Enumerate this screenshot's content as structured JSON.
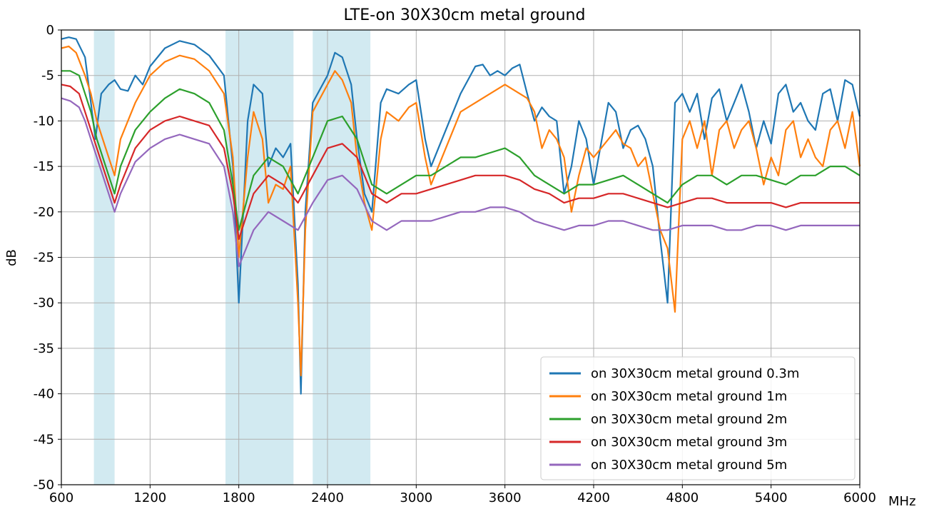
{
  "chart_data": {
    "type": "line",
    "title": "LTE-on 30X30cm metal ground",
    "ylabel": "dB",
    "xlabel": "",
    "x_unit": "MHz",
    "xlim": [
      600,
      6000
    ],
    "ylim": [
      -50,
      0
    ],
    "x_ticks": [
      600,
      1200,
      1800,
      2400,
      3000,
      3600,
      4200,
      4800,
      5400,
      6000
    ],
    "x_tick_labels": [
      "600",
      "1200",
      "1800",
      "2400",
      "3000",
      "3600",
      "4200",
      "4800",
      "5400",
      "6000"
    ],
    "y_ticks": [
      0,
      -5,
      -10,
      -15,
      -20,
      -25,
      -30,
      -35,
      -40,
      -45,
      -50
    ],
    "y_tick_labels": [
      "0",
      "-5",
      "-10",
      "-15",
      "-20",
      "-25",
      "-30",
      "-35",
      "-40",
      "-45",
      "-50"
    ],
    "grid": true,
    "legend_position": "bottom-right",
    "shaded_bands": [
      [
        820,
        960
      ],
      [
        1710,
        2170
      ],
      [
        2300,
        2690
      ]
    ],
    "band_color": "#add8e6",
    "series": [
      {
        "name": "on 30X30cm metal ground 0.3m",
        "color": "#1f77b4",
        "x": [
          600,
          650,
          700,
          760,
          800,
          830,
          870,
          920,
          960,
          1000,
          1050,
          1100,
          1150,
          1200,
          1300,
          1400,
          1500,
          1600,
          1700,
          1760,
          1800,
          1860,
          1900,
          1960,
          2000,
          2050,
          2100,
          2150,
          2200,
          2220,
          2250,
          2300,
          2400,
          2450,
          2500,
          2560,
          2600,
          2650,
          2700,
          2760,
          2800,
          2880,
          2950,
          3000,
          3060,
          3100,
          3200,
          3300,
          3400,
          3450,
          3500,
          3550,
          3600,
          3650,
          3700,
          3750,
          3800,
          3850,
          3900,
          3950,
          4000,
          4050,
          4100,
          4150,
          4200,
          4300,
          4350,
          4400,
          4450,
          4500,
          4550,
          4600,
          4650,
          4700,
          4750,
          4800,
          4850,
          4900,
          4950,
          5000,
          5050,
          5100,
          5150,
          5200,
          5250,
          5300,
          5350,
          5400,
          5450,
          5500,
          5550,
          5600,
          5650,
          5700,
          5750,
          5800,
          5850,
          5900,
          5950,
          6000
        ],
        "y": [
          -1,
          -0.8,
          -1,
          -3,
          -8,
          -12,
          -7,
          -6,
          -5.5,
          -6.5,
          -6.7,
          -5,
          -6,
          -4,
          -2,
          -1.2,
          -1.6,
          -2.8,
          -5,
          -15,
          -30,
          -10,
          -6,
          -7,
          -15,
          -13,
          -14,
          -12.5,
          -28,
          -40,
          -20,
          -8,
          -5,
          -2.5,
          -3,
          -6,
          -12,
          -18,
          -20,
          -8,
          -6.5,
          -7,
          -6,
          -5.5,
          -12,
          -15,
          -11,
          -7,
          -4,
          -3.8,
          -5,
          -4.5,
          -5,
          -4.2,
          -3.8,
          -7,
          -10,
          -8.5,
          -9.5,
          -10,
          -18,
          -15,
          -10,
          -12,
          -17,
          -8,
          -9,
          -13,
          -11,
          -10.5,
          -12,
          -15,
          -23,
          -30,
          -8,
          -7,
          -9,
          -7,
          -12,
          -7.5,
          -6.5,
          -10,
          -8,
          -6,
          -9,
          -13,
          -10,
          -12.5,
          -7,
          -6,
          -9,
          -8,
          -10,
          -11,
          -7,
          -6.5,
          -10,
          -5.5,
          -6,
          -9.5
        ]
      },
      {
        "name": "on 30X30cm metal ground 1m",
        "color": "#ff7f0e",
        "x": [
          600,
          650,
          700,
          760,
          800,
          840,
          880,
          920,
          960,
          1000,
          1100,
          1200,
          1300,
          1400,
          1500,
          1600,
          1700,
          1760,
          1800,
          1860,
          1900,
          1960,
          2000,
          2050,
          2100,
          2150,
          2200,
          2220,
          2250,
          2300,
          2400,
          2450,
          2500,
          2560,
          2600,
          2650,
          2700,
          2760,
          2800,
          2880,
          2950,
          3000,
          3060,
          3100,
          3200,
          3300,
          3400,
          3500,
          3600,
          3700,
          3750,
          3800,
          3850,
          3900,
          3950,
          4000,
          4050,
          4100,
          4150,
          4200,
          4300,
          4350,
          4400,
          4450,
          4500,
          4550,
          4600,
          4650,
          4700,
          4750,
          4800,
          4850,
          4900,
          4950,
          5000,
          5050,
          5100,
          5150,
          5200,
          5250,
          5300,
          5350,
          5400,
          5450,
          5500,
          5550,
          5600,
          5650,
          5700,
          5750,
          5800,
          5850,
          5900,
          5950,
          6000
        ],
        "y": [
          -2,
          -1.8,
          -2.5,
          -5,
          -7,
          -10,
          -12,
          -14,
          -16,
          -12,
          -8,
          -5,
          -3.5,
          -2.8,
          -3.2,
          -4.5,
          -7,
          -14,
          -25,
          -14,
          -9,
          -12,
          -19,
          -17,
          -17.5,
          -15,
          -30,
          -38,
          -22,
          -9,
          -6,
          -4.5,
          -5.5,
          -8,
          -14,
          -19,
          -22,
          -12,
          -9,
          -10,
          -8.5,
          -8,
          -14,
          -17,
          -13,
          -9,
          -8,
          -7,
          -6,
          -7,
          -7.5,
          -9,
          -13,
          -11,
          -12,
          -14,
          -20,
          -16,
          -13,
          -14,
          -12,
          -11,
          -12.5,
          -13,
          -15,
          -14,
          -18,
          -22,
          -24,
          -31,
          -12,
          -10,
          -13,
          -10,
          -16,
          -11,
          -10,
          -13,
          -11,
          -10,
          -13,
          -17,
          -14,
          -16,
          -11,
          -10,
          -14,
          -12,
          -14,
          -15,
          -11,
          -10,
          -13,
          -9,
          -15
        ]
      },
      {
        "name": "on 30X30cm metal ground 2m",
        "color": "#2ca02c",
        "x": [
          600,
          660,
          720,
          760,
          800,
          840,
          880,
          920,
          960,
          1000,
          1100,
          1200,
          1300,
          1400,
          1500,
          1600,
          1700,
          1760,
          1800,
          1900,
          2000,
          2100,
          2200,
          2300,
          2400,
          2500,
          2600,
          2700,
          2800,
          2900,
          3000,
          3100,
          3200,
          3300,
          3400,
          3500,
          3600,
          3700,
          3800,
          3900,
          4000,
          4100,
          4200,
          4300,
          4400,
          4500,
          4600,
          4700,
          4800,
          4900,
          5000,
          5100,
          5200,
          5300,
          5400,
          5500,
          5600,
          5700,
          5800,
          5900,
          6000
        ],
        "y": [
          -4.5,
          -4.5,
          -5,
          -7,
          -9,
          -12,
          -14,
          -16,
          -18,
          -15,
          -11,
          -9,
          -7.5,
          -6.5,
          -7,
          -8,
          -11,
          -17,
          -22,
          -16,
          -14,
          -15,
          -18,
          -14,
          -10,
          -9.5,
          -12,
          -17,
          -18,
          -17,
          -16,
          -16,
          -15,
          -14,
          -14,
          -13.5,
          -13,
          -14,
          -16,
          -17,
          -18,
          -17,
          -17,
          -16.5,
          -16,
          -17,
          -18,
          -19,
          -17,
          -16,
          -16,
          -17,
          -16,
          -16,
          -16.5,
          -17,
          -16,
          -16,
          -15,
          -15,
          -16
        ]
      },
      {
        "name": "on 30X30cm metal ground 3m",
        "color": "#d62728",
        "x": [
          600,
          660,
          720,
          760,
          800,
          840,
          880,
          920,
          960,
          1000,
          1100,
          1200,
          1300,
          1400,
          1500,
          1600,
          1700,
          1760,
          1800,
          1900,
          2000,
          2100,
          2200,
          2300,
          2400,
          2500,
          2600,
          2700,
          2800,
          2900,
          3000,
          3100,
          3200,
          3300,
          3400,
          3500,
          3600,
          3700,
          3800,
          3900,
          4000,
          4100,
          4200,
          4300,
          4400,
          4500,
          4600,
          4700,
          4800,
          4900,
          5000,
          5100,
          5200,
          5300,
          5400,
          5500,
          5600,
          5700,
          5800,
          5900,
          6000
        ],
        "y": [
          -6,
          -6.2,
          -7,
          -9,
          -11,
          -13,
          -15,
          -17,
          -19,
          -17,
          -13,
          -11,
          -10,
          -9.5,
          -10,
          -10.5,
          -13,
          -18,
          -23,
          -18,
          -16,
          -17,
          -19,
          -16,
          -13,
          -12.5,
          -14,
          -18,
          -19,
          -18,
          -18,
          -17.5,
          -17,
          -16.5,
          -16,
          -16,
          -16,
          -16.5,
          -17.5,
          -18,
          -19,
          -18.5,
          -18.5,
          -18,
          -18,
          -18.5,
          -19,
          -19.5,
          -19,
          -18.5,
          -18.5,
          -19,
          -19,
          -19,
          -19,
          -19.5,
          -19,
          -19,
          -19,
          -19,
          -19
        ]
      },
      {
        "name": "on 30X30cm metal ground 5m",
        "color": "#9467bd",
        "x": [
          600,
          660,
          720,
          760,
          800,
          840,
          880,
          920,
          960,
          1000,
          1100,
          1200,
          1300,
          1400,
          1500,
          1600,
          1700,
          1760,
          1800,
          1900,
          2000,
          2100,
          2200,
          2300,
          2400,
          2500,
          2600,
          2700,
          2800,
          2900,
          3000,
          3100,
          3200,
          3300,
          3400,
          3500,
          3600,
          3700,
          3800,
          3900,
          4000,
          4100,
          4200,
          4300,
          4400,
          4500,
          4600,
          4700,
          4800,
          4900,
          5000,
          5100,
          5200,
          5300,
          5400,
          5500,
          5600,
          5700,
          5800,
          5900,
          6000
        ],
        "y": [
          -7.5,
          -7.8,
          -8.5,
          -10,
          -12,
          -14,
          -16,
          -18,
          -20,
          -18,
          -14.5,
          -13,
          -12,
          -11.5,
          -12,
          -12.5,
          -15,
          -20,
          -26,
          -22,
          -20,
          -21,
          -22,
          -19,
          -16.5,
          -16,
          -17.5,
          -21,
          -22,
          -21,
          -21,
          -21,
          -20.5,
          -20,
          -20,
          -19.5,
          -19.5,
          -20,
          -21,
          -21.5,
          -22,
          -21.5,
          -21.5,
          -21,
          -21,
          -21.5,
          -22,
          -22,
          -21.5,
          -21.5,
          -21.5,
          -22,
          -22,
          -21.5,
          -21.5,
          -22,
          -21.5,
          -21.5,
          -21.5,
          -21.5,
          -21.5
        ]
      }
    ]
  }
}
